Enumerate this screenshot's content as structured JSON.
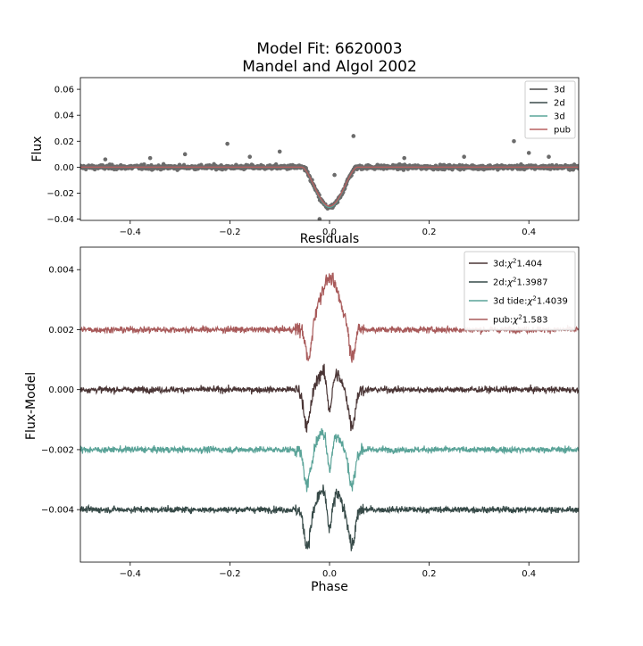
{
  "figure": {
    "title_line1": "Model Fit: 6620003",
    "title_line2": "Mandel and Algol 2002"
  },
  "chart_data": [
    {
      "type": "scatter",
      "title": "",
      "xlabel": "",
      "ylabel": "Flux",
      "xlim": [
        -0.5,
        0.5
      ],
      "ylim": [
        -0.041,
        0.069
      ],
      "x_ticks": [
        -0.4,
        -0.2,
        0.0,
        0.2,
        0.4
      ],
      "x_tick_labels": [
        "−0.4",
        "−0.2",
        "0.0",
        "0.2",
        "0.4"
      ],
      "y_ticks": [
        -0.04,
        -0.02,
        0.0,
        0.02,
        0.04,
        0.06
      ],
      "y_tick_labels": [
        "−0.04",
        "−0.02",
        "0.00",
        "0.02",
        "0.04",
        "0.06"
      ],
      "grid": false,
      "legend_position": "top-right",
      "transit": {
        "center": 0.0,
        "half_width": 0.055,
        "depth": -0.031
      },
      "outliers": [
        {
          "x": -0.29,
          "y": 0.01
        },
        {
          "x": -0.205,
          "y": 0.018
        },
        {
          "x": -0.1,
          "y": 0.012
        },
        {
          "x": 0.048,
          "y": 0.024
        },
        {
          "x": 0.37,
          "y": 0.02
        },
        {
          "x": 0.4,
          "y": 0.011
        },
        {
          "x": 0.27,
          "y": 0.008
        },
        {
          "x": -0.02,
          "y": -0.04
        },
        {
          "x": -0.45,
          "y": 0.006
        },
        {
          "x": -0.36,
          "y": 0.007
        },
        {
          "x": 0.15,
          "y": 0.007
        },
        {
          "x": 0.44,
          "y": 0.008
        },
        {
          "x": -0.16,
          "y": 0.008
        },
        {
          "x": 0.01,
          "y": -0.006
        }
      ],
      "series": [
        {
          "name": "3d",
          "color": "#4a4a4a"
        },
        {
          "name": "2d",
          "color": "#3a4a4a"
        },
        {
          "name": "3d",
          "color": "#5aa59a"
        },
        {
          "name": "pub",
          "color": "#b86060"
        }
      ],
      "points_color": "#6b6b6b"
    },
    {
      "type": "line",
      "title": "Residuals",
      "xlabel": "Phase",
      "ylabel": "Flux-Model",
      "xlim": [
        -0.5,
        0.5
      ],
      "ylim": [
        -0.00575,
        0.00475
      ],
      "x_ticks": [
        -0.4,
        -0.2,
        0.0,
        0.2,
        0.4
      ],
      "x_tick_labels": [
        "−0.4",
        "−0.2",
        "0.0",
        "0.2",
        "0.4"
      ],
      "y_ticks": [
        -0.004,
        -0.002,
        0.0,
        0.002,
        0.004
      ],
      "y_tick_labels": [
        "−0.004",
        "−0.002",
        "0.000",
        "0.002",
        "0.004"
      ],
      "grid": false,
      "legend_position": "top-right",
      "series": [
        {
          "legend_prefix": "3d:",
          "legend_value": "1.404",
          "color": "#4a3535",
          "offset": 0.0,
          "shape": "w"
        },
        {
          "legend_prefix": "2d:",
          "legend_value": "1.3987",
          "color": "#374a48",
          "offset": -0.004,
          "shape": "w"
        },
        {
          "legend_prefix": "3d tide:",
          "legend_value": "1.4039",
          "color": "#5aa398",
          "offset": -0.002,
          "shape": "w"
        },
        {
          "legend_prefix": "pub:",
          "legend_value": "1.583",
          "color": "#a85a5a",
          "offset": 0.002,
          "shape": "bump"
        }
      ]
    }
  ]
}
